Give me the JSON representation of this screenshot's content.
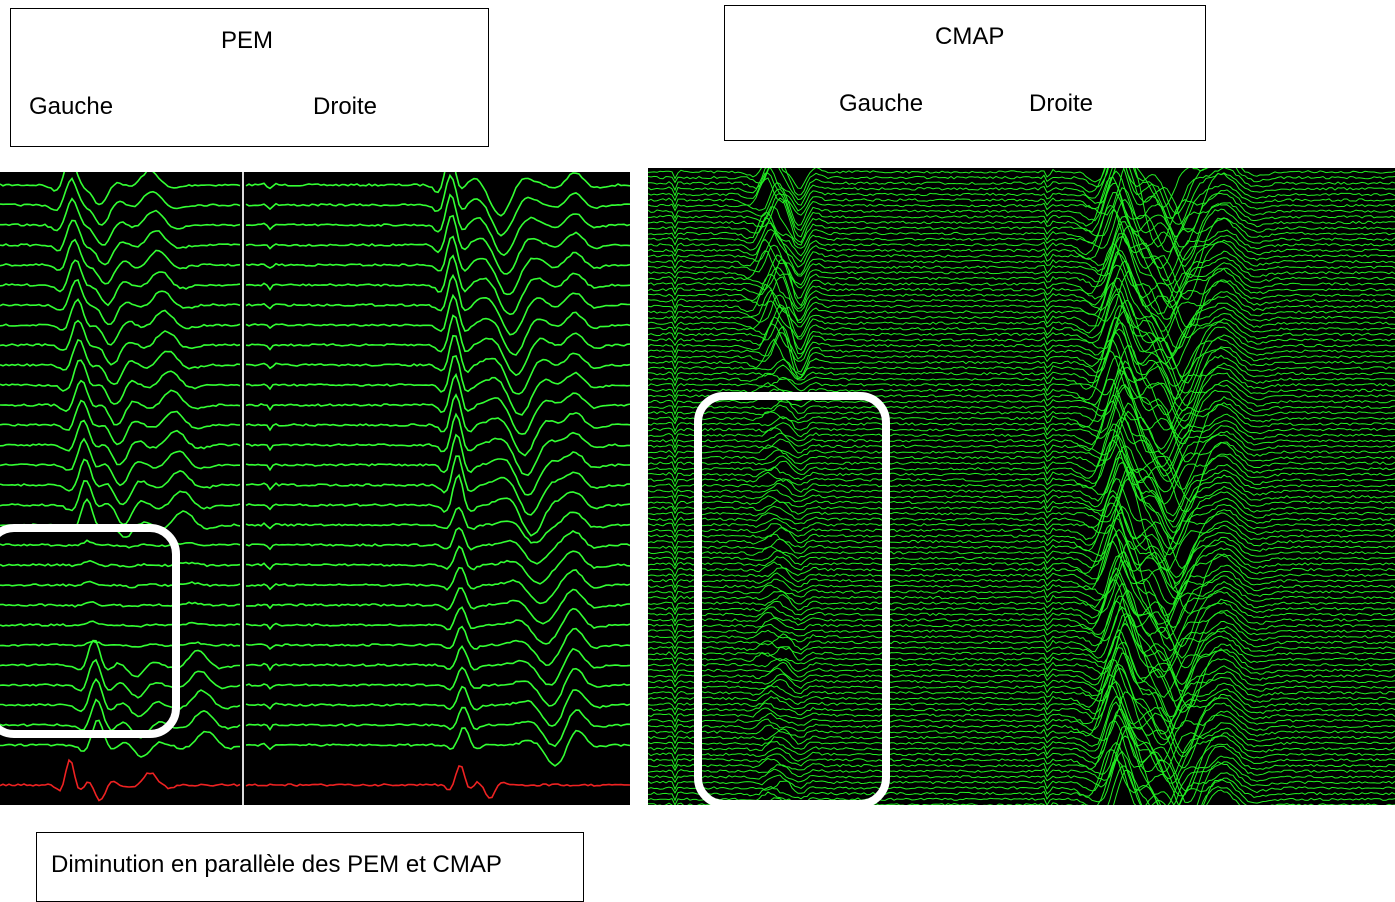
{
  "left_box": {
    "title": "PEM",
    "left_label": "Gauche",
    "right_label": "Droite"
  },
  "right_box": {
    "title": "CMAP",
    "left_label": "Gauche",
    "right_label": "Droite"
  },
  "caption": "Diminution en parallèle des PEM et CMAP"
}
